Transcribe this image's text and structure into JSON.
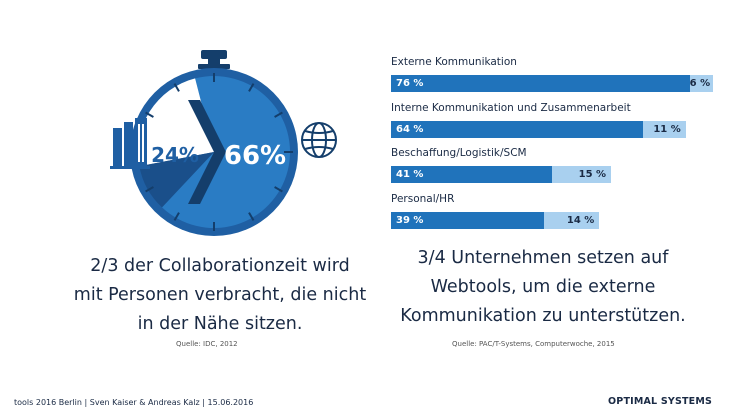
{
  "stopwatch": {
    "left_value": "24%",
    "right_value": "66%",
    "left_fraction": 0.24,
    "right_fraction": 0.66,
    "left_icon": "office-building-icon",
    "right_icon": "globe-icon",
    "caption_lines": [
      "2/3 der Collaborationzeit wird",
      "mit Personen verbracht, die nicht",
      "in der Nähe sitzen."
    ],
    "source": "Quelle: IDC, 2012"
  },
  "bars_caption_lines": [
    "3/4 Unternehmen setzen auf",
    "Webtools, um die externe",
    "Kommunikation zu unterstützen."
  ],
  "bars_source": "Quelle: PAC/T-Systems, Computerwoche, 2015",
  "footer": {
    "left": "tools 2016 Berlin  |  Sven Kaiser & Andreas Kalz  |  15.06.2016",
    "brand": "OPTIMAL SYSTEMS"
  },
  "colors": {
    "dark_blue": "#1f5fa3",
    "mid_blue": "#2073bb",
    "light_blue": "#a9d0ef",
    "navy": "#143e6b",
    "text": "#1a2a44"
  },
  "chart_data": {
    "type": "bar",
    "categories": [
      "Externe Kommunikation",
      "Interne Kommunikation und Zusammenarbeit",
      "Beschaffung/Logistik/SCM",
      "Personal/HR"
    ],
    "series": [
      {
        "values": [
          76,
          64,
          41,
          39
        ],
        "labels": [
          "76 %",
          "64 %",
          "41 %",
          "39 %"
        ]
      },
      {
        "values": [
          6,
          11,
          15,
          14
        ],
        "labels": [
          "6 %",
          "11 %",
          "15 %",
          "14 %"
        ]
      }
    ],
    "stacked": true,
    "orientation": "horizontal",
    "xlim": [
      0,
      100
    ]
  }
}
